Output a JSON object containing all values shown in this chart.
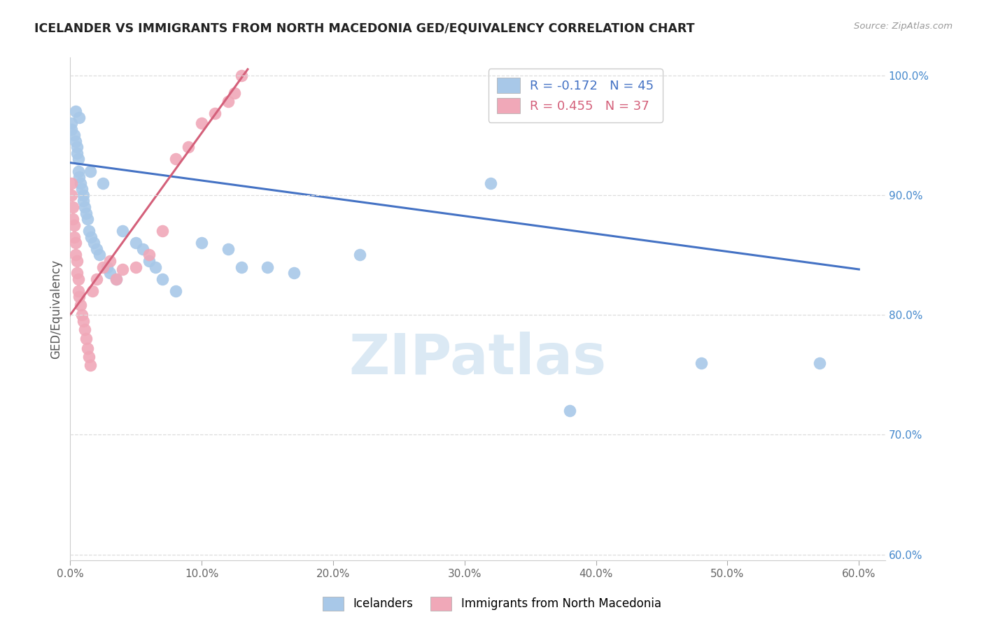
{
  "title": "ICELANDER VS IMMIGRANTS FROM NORTH MACEDONIA GED/EQUIVALENCY CORRELATION CHART",
  "source": "Source: ZipAtlas.com",
  "ylabel_label": "GED/Equivalency",
  "xlim": [
    0.0,
    0.62
  ],
  "ylim": [
    0.595,
    1.015
  ],
  "yticks": [
    0.6,
    0.7,
    0.8,
    0.9,
    1.0
  ],
  "ytick_labels": [
    "60.0%",
    "70.0%",
    "80.0%",
    "90.0%",
    "100.0%"
  ],
  "xticks": [
    0.0,
    0.1,
    0.2,
    0.3,
    0.4,
    0.5,
    0.6
  ],
  "xtick_labels": [
    "0.0%",
    "10.0%",
    "20.0%",
    "30.0%",
    "40.0%",
    "50.0%",
    "60.0%"
  ],
  "legend_r1": "R = -0.172",
  "legend_n1": "N = 45",
  "legend_r2": "R = 0.455",
  "legend_n2": "N = 37",
  "blue_scatter_color": "#a8c8e8",
  "pink_scatter_color": "#f0a8b8",
  "blue_line_color": "#4472c4",
  "pink_line_color": "#d4607a",
  "watermark_color": "#cce0f0",
  "grid_color": "#dddddd",
  "blue_x": [
    0.001,
    0.001,
    0.003,
    0.004,
    0.004,
    0.005,
    0.005,
    0.006,
    0.006,
    0.007,
    0.007,
    0.008,
    0.009,
    0.01,
    0.01,
    0.011,
    0.012,
    0.013,
    0.014,
    0.015,
    0.016,
    0.018,
    0.02,
    0.022,
    0.025,
    0.028,
    0.03,
    0.035,
    0.04,
    0.05,
    0.055,
    0.06,
    0.065,
    0.07,
    0.08,
    0.1,
    0.12,
    0.13,
    0.15,
    0.17,
    0.22,
    0.32,
    0.38,
    0.48,
    0.57
  ],
  "blue_y": [
    0.96,
    0.955,
    0.95,
    0.97,
    0.945,
    0.94,
    0.935,
    0.93,
    0.92,
    0.965,
    0.915,
    0.91,
    0.905,
    0.9,
    0.895,
    0.89,
    0.885,
    0.88,
    0.87,
    0.92,
    0.865,
    0.86,
    0.855,
    0.85,
    0.91,
    0.84,
    0.835,
    0.83,
    0.87,
    0.86,
    0.855,
    0.845,
    0.84,
    0.83,
    0.82,
    0.86,
    0.855,
    0.84,
    0.84,
    0.835,
    0.85,
    0.91,
    0.72,
    0.76,
    0.76
  ],
  "pink_x": [
    0.001,
    0.001,
    0.002,
    0.002,
    0.003,
    0.003,
    0.004,
    0.004,
    0.005,
    0.005,
    0.006,
    0.006,
    0.007,
    0.008,
    0.009,
    0.01,
    0.011,
    0.012,
    0.013,
    0.014,
    0.015,
    0.017,
    0.02,
    0.025,
    0.03,
    0.035,
    0.04,
    0.05,
    0.06,
    0.07,
    0.08,
    0.09,
    0.1,
    0.11,
    0.12,
    0.125,
    0.13
  ],
  "pink_y": [
    0.91,
    0.9,
    0.89,
    0.88,
    0.875,
    0.865,
    0.86,
    0.85,
    0.845,
    0.835,
    0.83,
    0.82,
    0.815,
    0.808,
    0.8,
    0.795,
    0.788,
    0.78,
    0.772,
    0.765,
    0.758,
    0.82,
    0.83,
    0.84,
    0.845,
    0.83,
    0.838,
    0.84,
    0.85,
    0.87,
    0.93,
    0.94,
    0.96,
    0.968,
    0.978,
    0.985,
    1.0
  ],
  "blue_line_x": [
    0.0,
    0.6
  ],
  "blue_line_y": [
    0.927,
    0.838
  ],
  "pink_line_x": [
    0.0,
    0.135
  ],
  "pink_line_y": [
    0.8,
    1.005
  ]
}
